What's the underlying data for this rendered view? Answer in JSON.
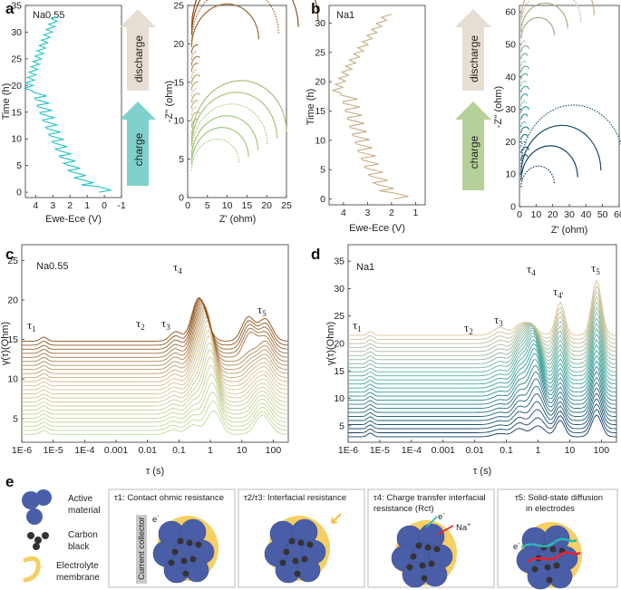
{
  "panels": {
    "a": {
      "letter": "a",
      "sample": "Na0.55"
    },
    "b": {
      "letter": "b",
      "sample": "Na1"
    },
    "c": {
      "letter": "c",
      "sample": "Na0.55"
    },
    "d": {
      "letter": "d",
      "sample": "Na1"
    },
    "e": {
      "letter": "e"
    }
  },
  "arrows": {
    "discharge": "discharge",
    "charge": "charge"
  },
  "colors": {
    "cyan": "#29c3c9",
    "tan": "#c9ad85",
    "brown": "#8a4a12",
    "green": "#9ccc7a",
    "navy": "#123a63",
    "teal": "#3aa7a0",
    "discharge_arrow": "#e6ded2",
    "charge_arrow_a": "#7fd1cc",
    "charge_arrow_b": "#b7d09a",
    "particle": "#4a5ea8",
    "electrolyte": "#f5cf64",
    "carbon": "#333333"
  },
  "chart_data": [
    {
      "id": "a-voltage",
      "type": "line",
      "title": "Na0.55",
      "xlabel": "Ewe-Ece (V)",
      "ylabel": "Time (h)",
      "xlim": [
        4.6,
        -1
      ],
      "ylim": [
        -1,
        35
      ],
      "xticks": [
        "4",
        "3",
        "2",
        "1",
        "0",
        "-1"
      ],
      "yticks": [
        "0",
        "5",
        "10",
        "15",
        "20",
        "25",
        "30",
        "35"
      ],
      "series": [
        {
          "name": "Na0.55 voltage",
          "color": "#29c3c9"
        }
      ]
    },
    {
      "id": "a-nyquist",
      "type": "scatter",
      "xlabel": "Z' (ohm)",
      "ylabel": "-Z'' (ohm)",
      "xlim": [
        0,
        25
      ],
      "ylim": [
        0,
        25
      ],
      "xticks": [
        "0",
        "5",
        "10",
        "15",
        "20",
        "25"
      ],
      "yticks": [
        "0",
        "5",
        "10",
        "15",
        "20",
        "25"
      ]
    },
    {
      "id": "b-voltage",
      "type": "line",
      "title": "Na1",
      "xlabel": "Ewe-Ece (V)",
      "ylabel": "Time (h)",
      "xlim": [
        4.6,
        0.6
      ],
      "ylim": [
        -1,
        33
      ],
      "xticks": [
        "4",
        "3",
        "2",
        "1"
      ],
      "yticks": [
        "0",
        "5",
        "10",
        "15",
        "20",
        "25",
        "30"
      ],
      "series": [
        {
          "name": "Na1 voltage",
          "color": "#c9ad85"
        }
      ]
    },
    {
      "id": "b-nyquist",
      "type": "scatter",
      "xlabel": "Z' (ohm)",
      "ylabel": "-Z'' (ohm)",
      "xlim": [
        0,
        60
      ],
      "ylim": [
        0,
        62
      ],
      "xticks": [
        "0",
        "10",
        "20",
        "30",
        "40",
        "50",
        "60"
      ],
      "yticks": [
        "0",
        "10",
        "20",
        "30",
        "40",
        "50",
        "60"
      ]
    },
    {
      "id": "c-drt",
      "type": "line",
      "title": "Na0.55",
      "xlabel": "τ (s)",
      "ylabel": "γ(τ)(Ohm)",
      "xlim": [
        1e-06,
        300
      ],
      "ylim": [
        2,
        27
      ],
      "xticks": [
        "1E-6",
        "1E-5",
        "1E-4",
        "0.001",
        "0.01",
        "0.1",
        "1",
        "10",
        "100"
      ],
      "yticks": [
        "5",
        "10",
        "15",
        "20",
        "25"
      ],
      "peaks": [
        "τ1",
        "τ2",
        "τ3",
        "τ4",
        "τ5"
      ]
    },
    {
      "id": "d-drt",
      "type": "line",
      "title": "Na1",
      "xlabel": "τ (s)",
      "ylabel": "γ(τ)(Ohm)",
      "xlim": [
        1e-06,
        300
      ],
      "ylim": [
        2,
        38
      ],
      "xticks": [
        "1E-6",
        "1E-5",
        "1E-4",
        "0.001",
        "0.01",
        "0.1",
        "1",
        "10",
        "100"
      ],
      "yticks": [
        "5",
        "10",
        "15",
        "20",
        "25",
        "30",
        "35"
      ],
      "peaks": [
        "τ1",
        "τ2",
        "τ3",
        "τ4",
        "τ4'",
        "τ5"
      ]
    }
  ],
  "tau": {
    "t1": "τ",
    "t1s": "1",
    "t2": "τ",
    "t2s": "2",
    "t3": "τ",
    "t3s": "3",
    "t4": "τ",
    "t4s": "4",
    "t4p": "τ",
    "t4ps": "4'",
    "t5": "τ",
    "t5s": "5"
  },
  "legend": {
    "active_1": "Active",
    "active_2": "material",
    "carbon_1": "Carbon",
    "carbon_2": "black",
    "electrolyte_1": "Electrolyte",
    "electrolyte_2": "membrane"
  },
  "boxes": {
    "b1_title": "τ1: Contact ohmic resistance",
    "b2_title": "τ2/τ3: Interfacial resistance",
    "b3_title_1": "τ4: Charge transfer interfacial",
    "b3_title_2": "resistance (Rct)",
    "b4_title_1": "τ5: Solid-state diffusion",
    "b4_title_2": "in electrodes",
    "current_collector": "Current collector",
    "electron": "e",
    "electron_sup": "-",
    "na_ion": "Na",
    "na_sup": "+"
  }
}
